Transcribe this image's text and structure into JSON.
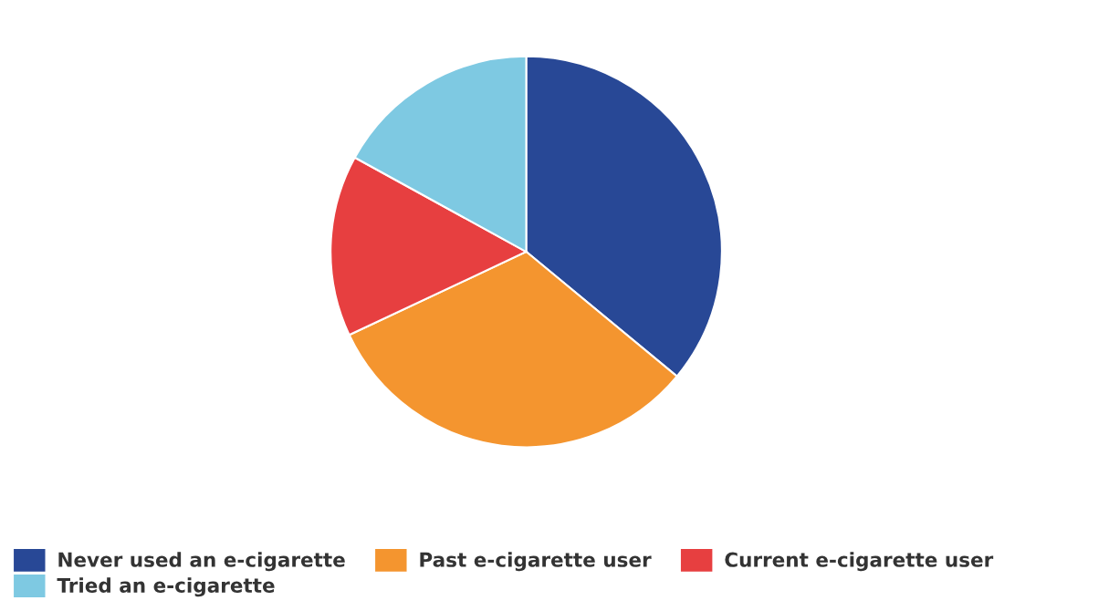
{
  "chart_data": {
    "type": "pie",
    "categories": [
      "Never used an e-cigarette",
      "Past e-cigarette user",
      "Current e-cigarette user",
      "Tried an e-cigarette"
    ],
    "values": [
      36,
      32,
      15,
      17
    ],
    "colors": [
      "#284896",
      "#f4952f",
      "#e73f40",
      "#7ec9e2"
    ],
    "legend": "bottom"
  }
}
